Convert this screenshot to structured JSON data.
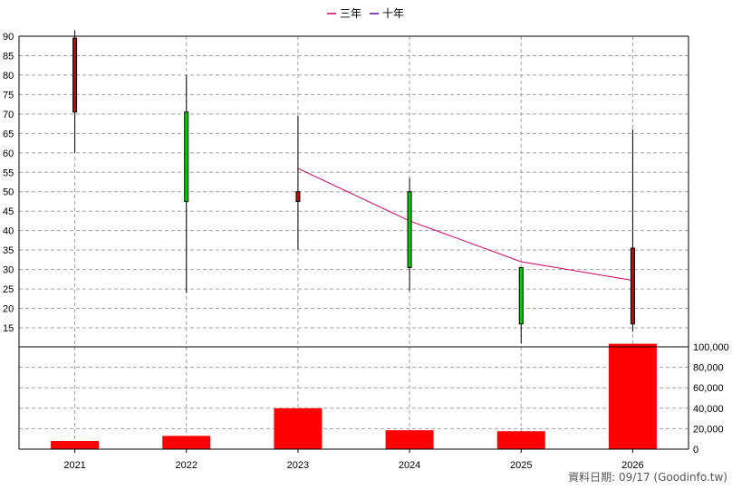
{
  "chart_data": {
    "type": "candlestick",
    "categories": [
      "2021",
      "2022",
      "2023",
      "2024",
      "2025",
      "2026"
    ],
    "candles": [
      {
        "x": "2021",
        "open": 70.5,
        "close": 89.5,
        "high": 91.5,
        "low": 60
      },
      {
        "x": "2022",
        "open": 70.5,
        "close": 47.5,
        "high": 80,
        "low": 24
      },
      {
        "x": "2023",
        "open": 47.5,
        "close": 50,
        "high": 69.5,
        "low": 35
      },
      {
        "x": "2024",
        "open": 50,
        "close": 30.5,
        "high": 53.5,
        "low": 24.5
      },
      {
        "x": "2025",
        "open": 30.5,
        "close": 16,
        "high": 30.5,
        "low": 11
      },
      {
        "x": "2026",
        "open": 16,
        "close": 35.5,
        "high": 66,
        "low": 14
      }
    ],
    "series": [
      {
        "name": "三年",
        "color": "#cc0066",
        "points": [
          {
            "x": "2023",
            "y": 56
          },
          {
            "x": "2024",
            "y": 42.5
          },
          {
            "x": "2025",
            "y": 32
          },
          {
            "x": "2026",
            "y": 27.2
          }
        ]
      },
      {
        "name": "十年",
        "color": "#660099",
        "points": []
      }
    ],
    "volume": {
      "values": [
        8000,
        13000,
        40000,
        18500,
        17500,
        103000
      ],
      "color": "#ff0000",
      "ylim": [
        0,
        100000
      ],
      "ticks": [
        "0",
        "20,000",
        "40,000",
        "60,000",
        "80,000",
        "100,000"
      ],
      "tick_values": [
        0,
        20000,
        40000,
        60000,
        80000,
        100000
      ]
    },
    "price_axis": {
      "ylim": [
        15,
        90
      ],
      "ticks": [
        "15",
        "20",
        "25",
        "30",
        "35",
        "40",
        "45",
        "50",
        "55",
        "60",
        "65",
        "70",
        "75",
        "80",
        "85",
        "90"
      ],
      "tick_values": [
        15,
        20,
        25,
        30,
        35,
        40,
        45,
        50,
        55,
        60,
        65,
        70,
        75,
        80,
        85,
        90
      ]
    },
    "colors": {
      "up": "#00cc00",
      "down": "#cc0000"
    },
    "grid": true,
    "legend_position": "top-center"
  },
  "footer": {
    "credit": "資料日期: 09/17  (Goodinfo.tw)"
  }
}
